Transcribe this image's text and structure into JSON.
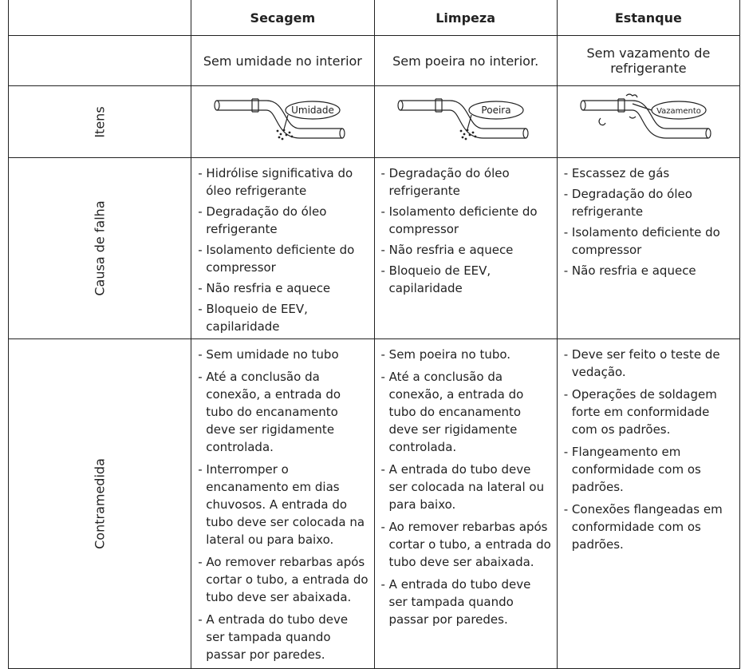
{
  "table": {
    "columns": [
      "Secagem",
      "Limpeza",
      "Estanque"
    ],
    "goals": [
      "Sem umidade no interior",
      "Sem poeira no interior.",
      "Sem vazamento de refrigerante"
    ],
    "itens": {
      "label": "Itens",
      "images": [
        "Umidade",
        "Poeira",
        "Vazamento"
      ]
    },
    "causes": {
      "label": "Causa de falha",
      "cells": [
        [
          "- Hidrólise significativa do óleo refrigerante",
          "- Degradação do óleo refrigerante",
          "- Isolamento deficiente do compressor",
          "- Não resfria e aquece",
          "- Bloqueio de EEV, capilaridade"
        ],
        [
          "- Degradação do óleo refrigerante",
          "- Isolamento deficiente do compressor",
          "- Não resfria e aquece",
          "- Bloqueio de EEV, capilaridade"
        ],
        [
          "- Escassez de gás",
          "- Degradação do óleo refrigerante",
          "- Isolamento deficiente do compressor",
          "- Não resfria e aquece"
        ]
      ]
    },
    "countermeasures": {
      "label": "Contramedida",
      "cells": [
        [
          "- Sem umidade no tubo",
          "- Até a conclusão da conexão, a entrada do tubo do encanamento deve ser rigidamente controlada.",
          "- Interromper o encanamento em dias chuvosos. A entrada do tubo deve ser colocada na lateral ou para baixo.",
          "- Ao remover rebarbas após cortar o tubo, a entrada do tubo deve ser abaixada.",
          "- A entrada do tubo deve ser tampada quando passar por paredes."
        ],
        [
          "- Sem poeira no tubo.",
          "- Até a conclusão da conexão, a entrada do tubo do encanamento deve ser rigidamente controlada.",
          "- A entrada do tubo deve ser colocada na lateral ou para baixo.",
          "- Ao remover rebarbas após cortar o tubo, a entrada do tubo deve ser abaixada.",
          "- A entrada do tubo deve ser tampada quando passar por paredes."
        ],
        [
          "- Deve ser feito o teste de vedação.",
          "- Operações de soldagem forte em conformidade com os padrões.",
          "- Flangeamento em conformidade com os padrões.",
          "- Conexões flangeadas em conformidade com os padrões."
        ]
      ]
    }
  }
}
